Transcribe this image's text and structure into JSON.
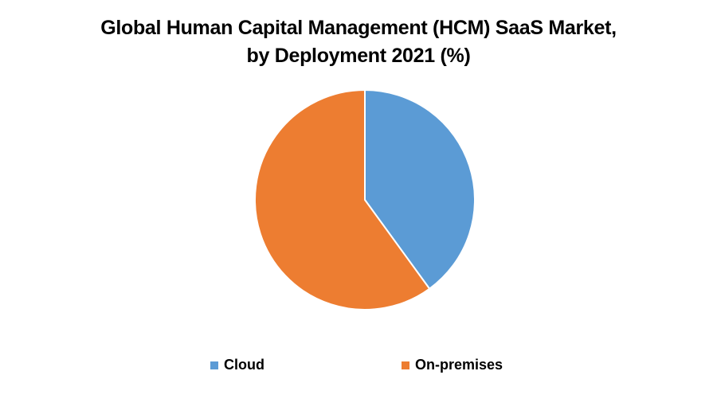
{
  "chart_data": {
    "type": "pie",
    "title": "Global Human Capital Management (HCM) SaaS Market, by Deployment 2021 (%)",
    "title_lines": [
      "Global Human Capital Management (HCM) SaaS Market,",
      "by Deployment 2021 (%)"
    ],
    "categories": [
      "Cloud",
      "On-premises"
    ],
    "values": [
      40,
      60
    ],
    "colors": [
      "#5B9BD5",
      "#ED7D31"
    ],
    "start_angle_deg": 0,
    "direction": "clockwise",
    "legend_position": "bottom",
    "data_labels": false
  }
}
